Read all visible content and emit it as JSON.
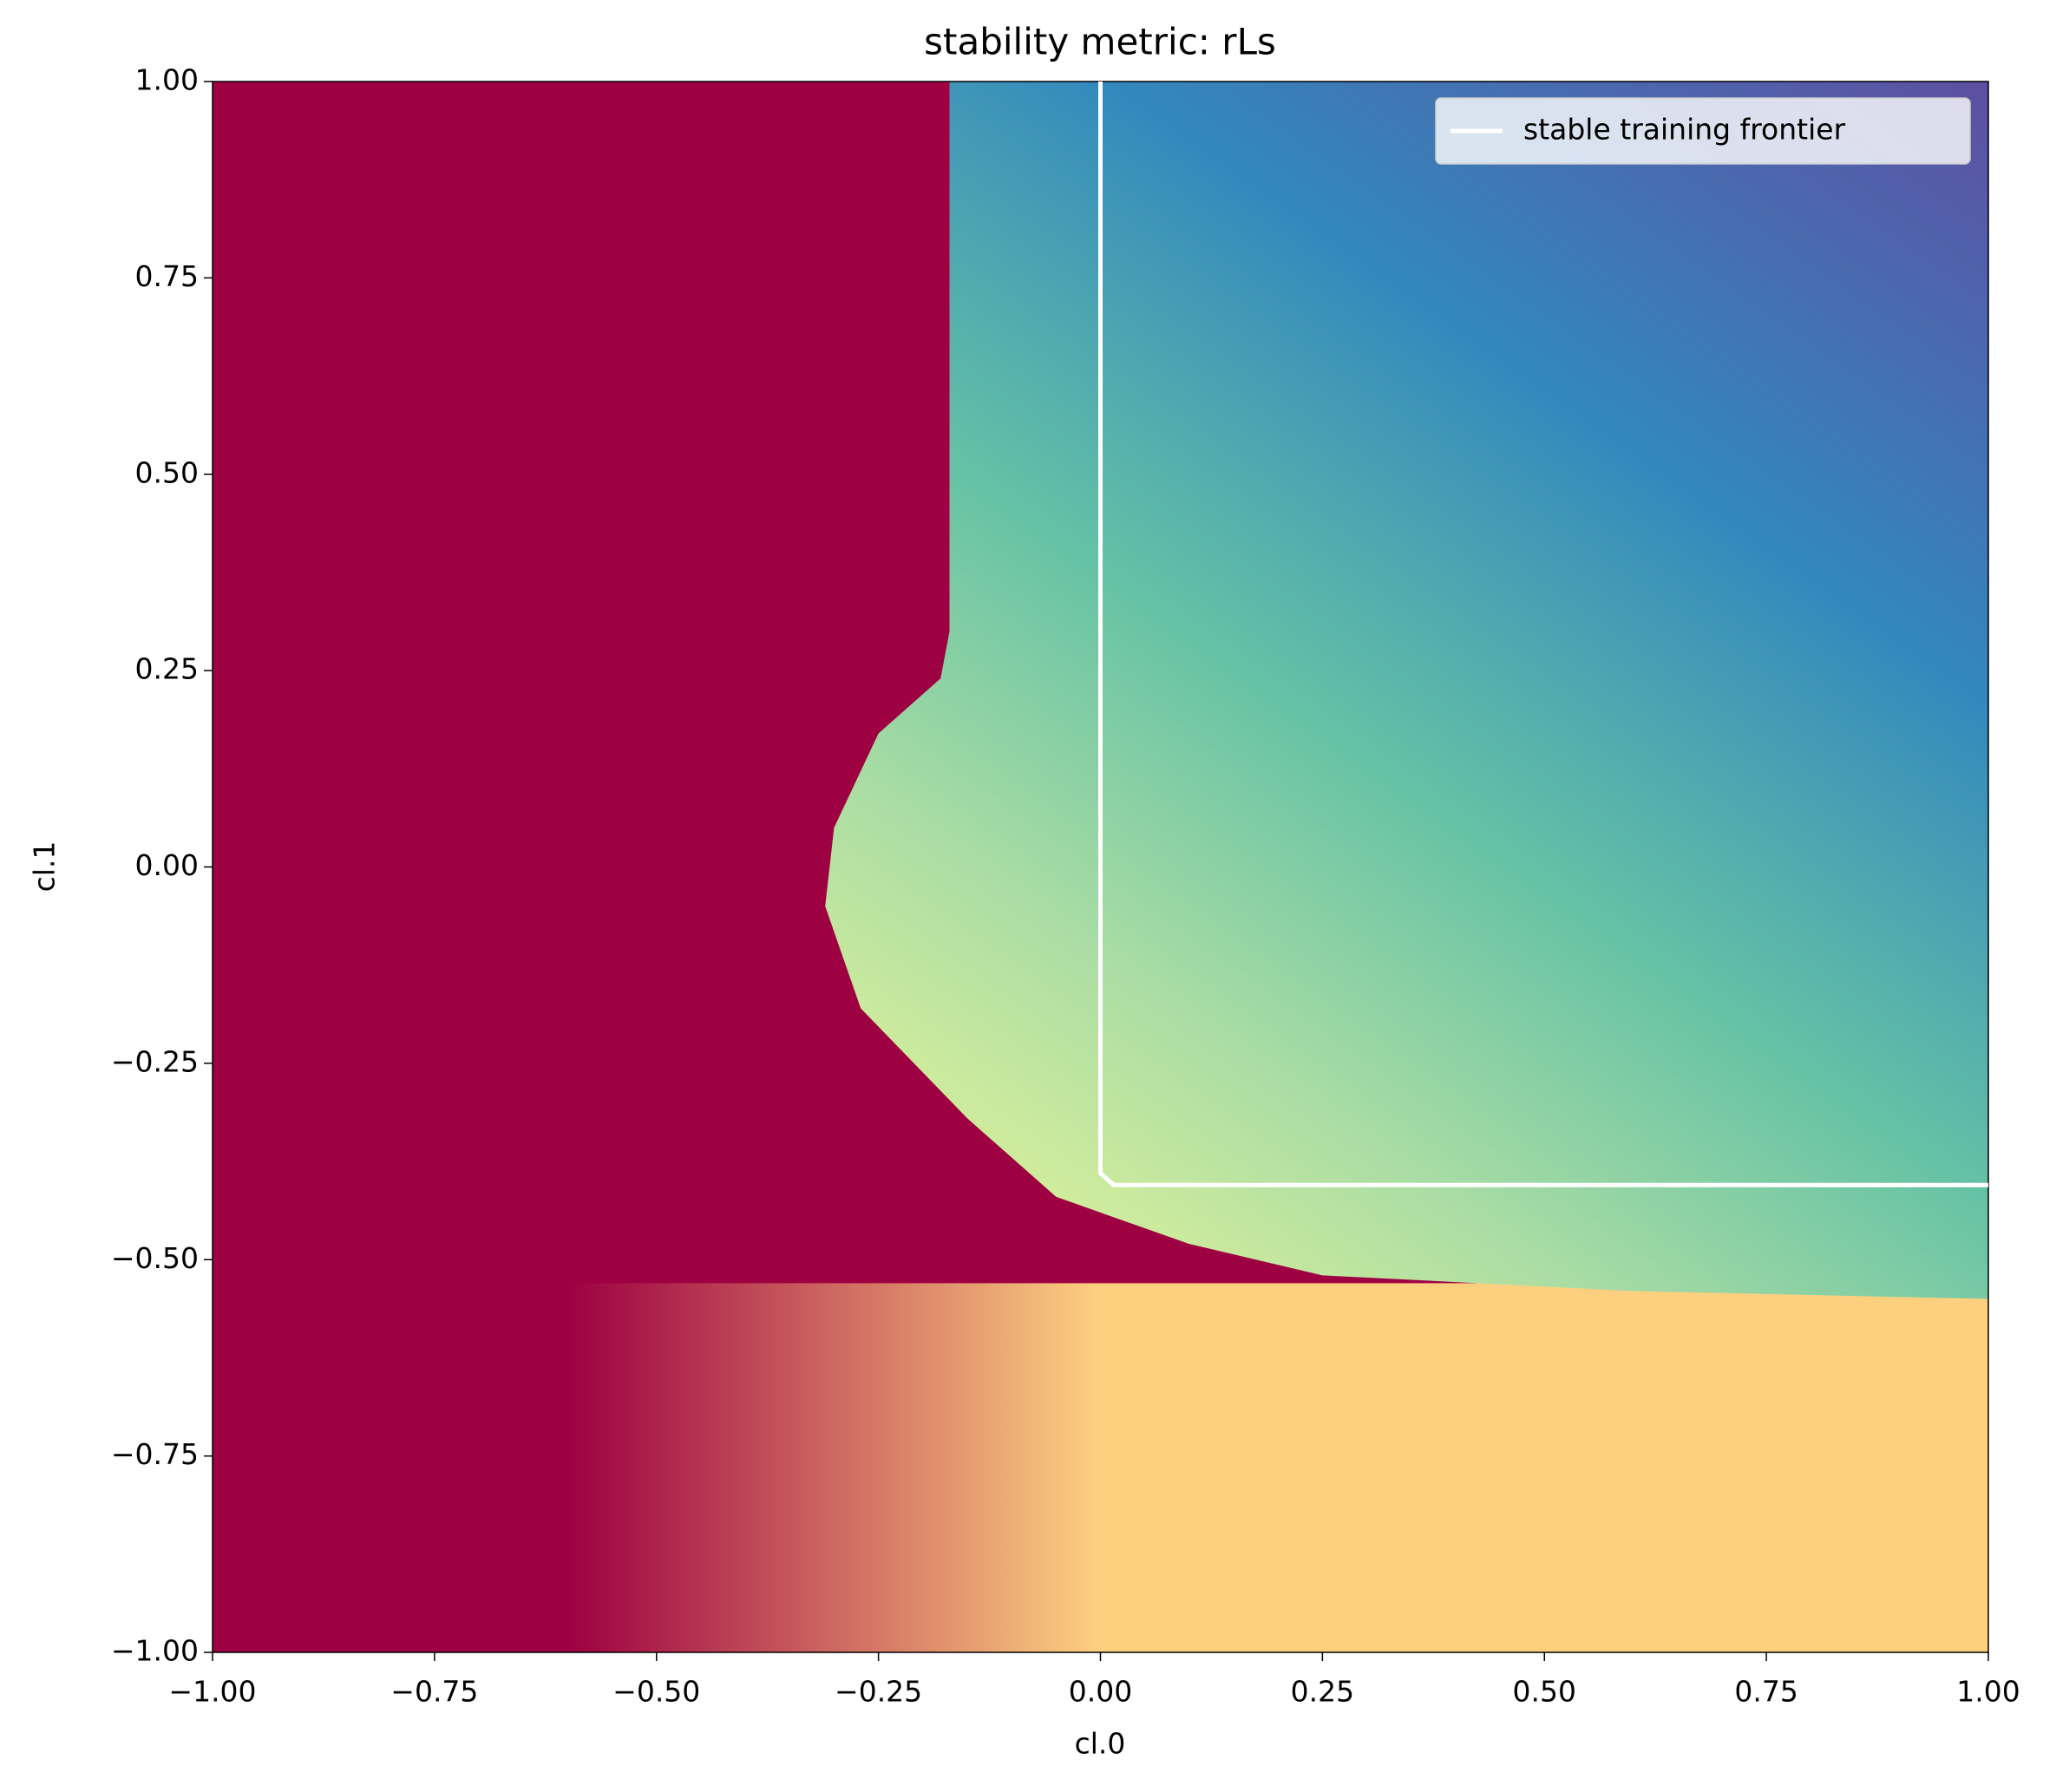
{
  "chart_data": {
    "type": "line",
    "title": "stability metric: rLs",
    "x_label": "cl.0",
    "y_label": "cl.1",
    "xlim": [
      -1,
      1
    ],
    "ylim": [
      -1,
      1
    ],
    "xticks": [
      {
        "value": -1,
        "label": "−1.00"
      },
      {
        "value": -0.75,
        "label": "−0.75"
      },
      {
        "value": -0.5,
        "label": "−0.50"
      },
      {
        "value": -0.25,
        "label": "−0.25"
      },
      {
        "value": 0,
        "label": "0.00"
      },
      {
        "value": 0.25,
        "label": "0.25"
      },
      {
        "value": 0.5,
        "label": "0.50"
      },
      {
        "value": 0.75,
        "label": "0.75"
      },
      {
        "value": 1,
        "label": "1.00"
      }
    ],
    "yticks": [
      {
        "value": -1,
        "label": "−1.00"
      },
      {
        "value": -0.75,
        "label": "−0.75"
      },
      {
        "value": -0.5,
        "label": "−0.50"
      },
      {
        "value": -0.25,
        "label": "−0.25"
      },
      {
        "value": 0,
        "label": "0.00"
      },
      {
        "value": 0.25,
        "label": "0.25"
      },
      {
        "value": 0.5,
        "label": "0.50"
      },
      {
        "value": 0.75,
        "label": "0.75"
      },
      {
        "value": 1,
        "label": "1.00"
      }
    ],
    "legend": "upper right",
    "series": [
      {
        "name": "stable training frontier",
        "color": "#ffffff",
        "x": [
          0,
          0,
          0.015,
          1
        ],
        "y": [
          1,
          -0.39,
          -0.405,
          -0.405
        ]
      }
    ]
  }
}
